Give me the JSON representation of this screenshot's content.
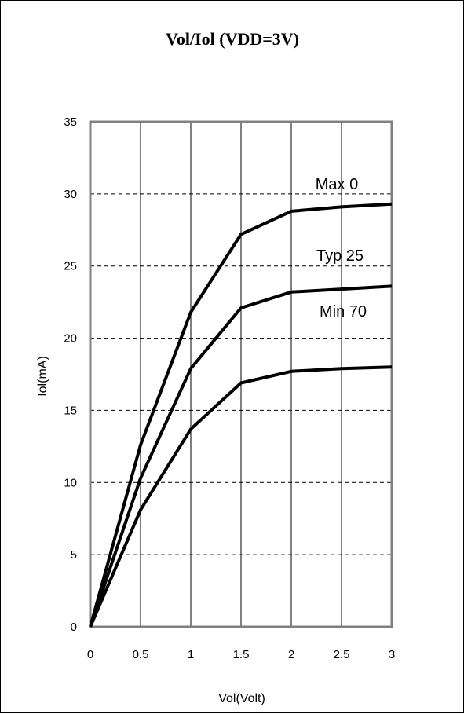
{
  "chart_data": {
    "type": "line",
    "title": "Vol/Iol (VDD=3V)",
    "xlabel": "Vol(Volt)",
    "ylabel": "Iol(mA)",
    "xlim": [
      0,
      3
    ],
    "ylim": [
      0,
      35
    ],
    "x_ticks": [
      0,
      0.5,
      1,
      1.5,
      2,
      2.5,
      3
    ],
    "x_tick_labels": [
      "0",
      "0.5",
      "1",
      "1.5",
      "2",
      "2.5",
      "3"
    ],
    "y_ticks": [
      0,
      5,
      10,
      15,
      20,
      25,
      30,
      35
    ],
    "y_tick_labels": [
      "0",
      "5",
      "10",
      "15",
      "20",
      "25",
      "30",
      "35"
    ],
    "grid": {
      "vertical": "solid",
      "horizontal": "dashed"
    },
    "series": [
      {
        "name": "Max 0",
        "x": [
          0,
          0.5,
          1,
          1.5,
          2,
          2.5,
          3
        ],
        "y": [
          0,
          12.6,
          21.8,
          27.2,
          28.8,
          29.1,
          29.3
        ]
      },
      {
        "name": "Typ 25",
        "x": [
          0,
          0.5,
          1,
          1.5,
          2,
          2.5,
          3
        ],
        "y": [
          0,
          10.3,
          17.9,
          22.1,
          23.2,
          23.4,
          23.6
        ]
      },
      {
        "name": "Min 70",
        "x": [
          0,
          0.5,
          1,
          1.5,
          2,
          2.5,
          3
        ],
        "y": [
          0,
          8.1,
          13.7,
          16.9,
          17.7,
          17.9,
          18.0
        ]
      }
    ],
    "colors": {
      "line": "#000000",
      "plot_border": "#808080",
      "grid": "#000000"
    }
  }
}
